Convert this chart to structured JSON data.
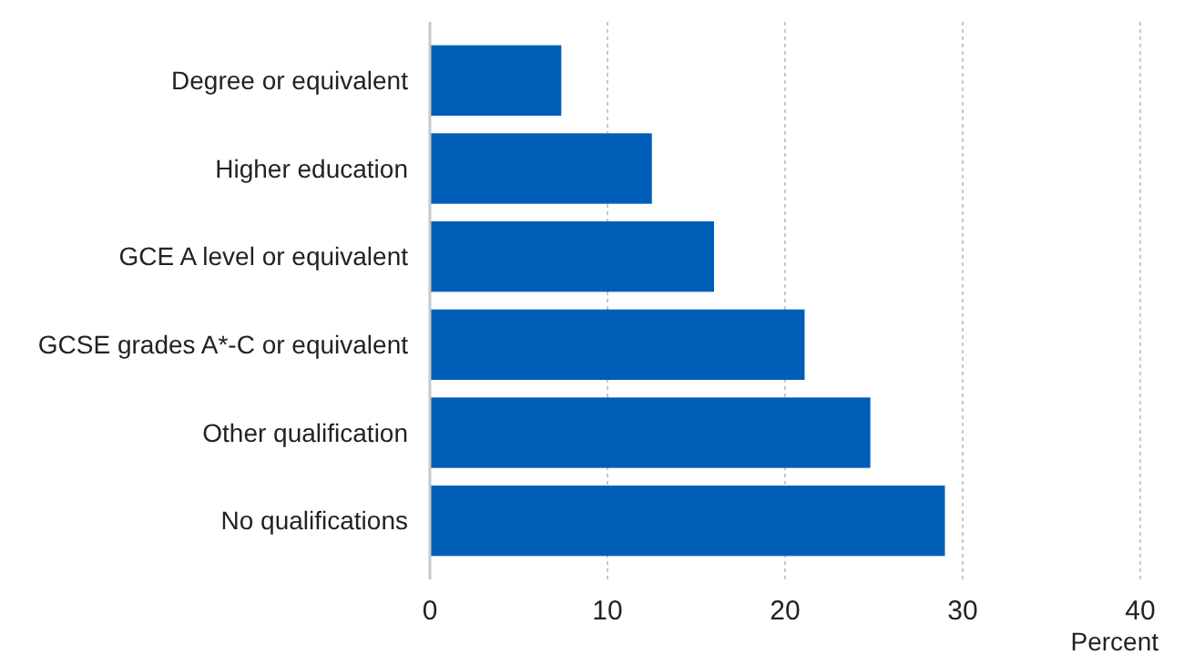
{
  "chart_data": {
    "type": "bar",
    "orientation": "horizontal",
    "categories": [
      "Degree or equivalent",
      "Higher education",
      "GCE A level or equivalent",
      "GCSE grades A*-C or equivalent",
      "Other qualification",
      "No qualifications"
    ],
    "values": [
      7.4,
      12.5,
      16.0,
      21.1,
      24.8,
      29.0
    ],
    "color": "#005eb8",
    "xlim": [
      0,
      40
    ],
    "xticks": [
      0,
      10,
      20,
      30,
      40
    ],
    "xlabel": "Percent",
    "grid": "x"
  }
}
